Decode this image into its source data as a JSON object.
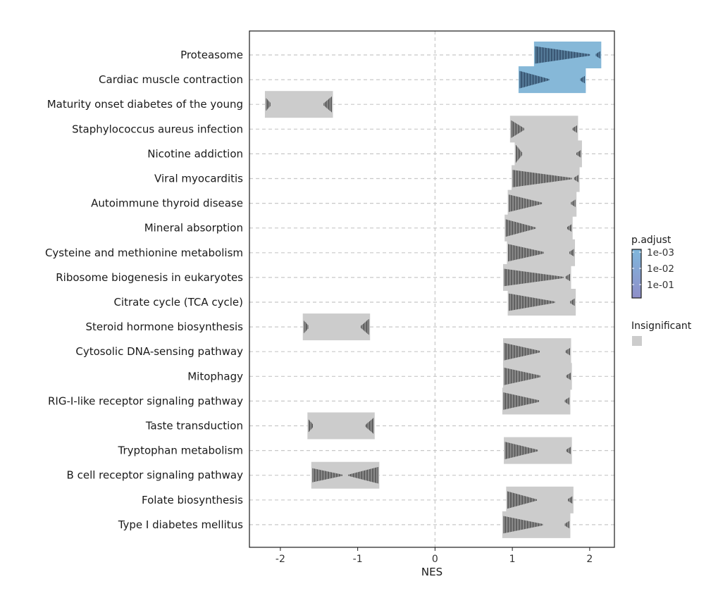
{
  "chart_data": {
    "type": "gsea-ridge",
    "xlabel": "NES",
    "xlim": [
      -2.4,
      2.32
    ],
    "xticks": [
      -2,
      -1,
      0,
      1,
      2
    ],
    "xtick_labels": [
      "-2",
      "-1",
      "0",
      "1",
      "2"
    ],
    "reference_line": 0,
    "legend": {
      "title": "p.adjust",
      "colorbar_labels": [
        "1e-03",
        "1e-02",
        "1e-01"
      ],
      "insignificant_label": "Insignificant",
      "significant_color": "#86b8d8",
      "insignificant_color": "#cccccc",
      "colorbar_colors": [
        "#7fb7dc",
        "#8f8fc9"
      ]
    },
    "pathways": [
      {
        "name": "Proteasome",
        "nes_min": 1.28,
        "nes_max": 2.15,
        "significant": true,
        "peak": "left",
        "inner": 0.85
      },
      {
        "name": "Cardiac muscle contraction",
        "nes_min": 1.08,
        "nes_max": 1.95,
        "significant": true,
        "peak": "left",
        "inner": 0.45
      },
      {
        "name": "Maturity onset diabetes of the young",
        "nes_min": -2.2,
        "nes_max": -1.32,
        "significant": false,
        "peak": "edges",
        "inner": 0.1
      },
      {
        "name": "Staphylococcus aureus infection",
        "nes_min": 0.97,
        "nes_max": 1.85,
        "significant": false,
        "peak": "left",
        "inner": 0.2
      },
      {
        "name": "Nicotine addiction",
        "nes_min": 1.03,
        "nes_max": 1.9,
        "significant": false,
        "peak": "left",
        "inner": 0.1
      },
      {
        "name": "Viral myocarditis",
        "nes_min": 0.99,
        "nes_max": 1.87,
        "significant": false,
        "peak": "left",
        "inner": 0.9
      },
      {
        "name": "Autoimmune thyroid disease",
        "nes_min": 0.94,
        "nes_max": 1.83,
        "significant": false,
        "peak": "left",
        "inner": 0.5
      },
      {
        "name": "Mineral absorption",
        "nes_min": 0.9,
        "nes_max": 1.78,
        "significant": false,
        "peak": "left",
        "inner": 0.45
      },
      {
        "name": "Cysteine and methionine metabolism",
        "nes_min": 0.93,
        "nes_max": 1.81,
        "significant": false,
        "peak": "left",
        "inner": 0.55
      },
      {
        "name": "Ribosome biogenesis in eukaryotes",
        "nes_min": 0.88,
        "nes_max": 1.76,
        "significant": false,
        "peak": "left",
        "inner": 0.9
      },
      {
        "name": "Citrate cycle (TCA cycle)",
        "nes_min": 0.94,
        "nes_max": 1.82,
        "significant": false,
        "peak": "left",
        "inner": 0.7
      },
      {
        "name": "Steroid hormone biosynthesis",
        "nes_min": -1.71,
        "nes_max": -0.84,
        "significant": false,
        "peak": "edges",
        "inner": 0.15
      },
      {
        "name": "Cytosolic DNA-sensing pathway",
        "nes_min": 0.88,
        "nes_max": 1.76,
        "significant": false,
        "peak": "left",
        "inner": 0.55
      },
      {
        "name": "Mitophagy",
        "nes_min": 0.88,
        "nes_max": 1.77,
        "significant": false,
        "peak": "left",
        "inner": 0.55
      },
      {
        "name": "RIG-I-like receptor signaling pathway",
        "nes_min": 0.87,
        "nes_max": 1.75,
        "significant": false,
        "peak": "left",
        "inner": 0.55
      },
      {
        "name": "Taste transduction",
        "nes_min": -1.65,
        "nes_max": -0.78,
        "significant": false,
        "peak": "edges",
        "inner": 0.15
      },
      {
        "name": "Tryptophan metabolism",
        "nes_min": 0.89,
        "nes_max": 1.77,
        "significant": false,
        "peak": "left",
        "inner": 0.5
      },
      {
        "name": "B cell receptor signaling pathway",
        "nes_min": -1.6,
        "nes_max": -0.72,
        "significant": false,
        "peak": "both",
        "inner": 0.9
      },
      {
        "name": "Folate biosynthesis",
        "nes_min": 0.92,
        "nes_max": 1.79,
        "significant": false,
        "peak": "left",
        "inner": 0.45
      },
      {
        "name": "Type I diabetes mellitus",
        "nes_min": 0.87,
        "nes_max": 1.75,
        "significant": false,
        "peak": "left",
        "inner": 0.6
      }
    ]
  }
}
